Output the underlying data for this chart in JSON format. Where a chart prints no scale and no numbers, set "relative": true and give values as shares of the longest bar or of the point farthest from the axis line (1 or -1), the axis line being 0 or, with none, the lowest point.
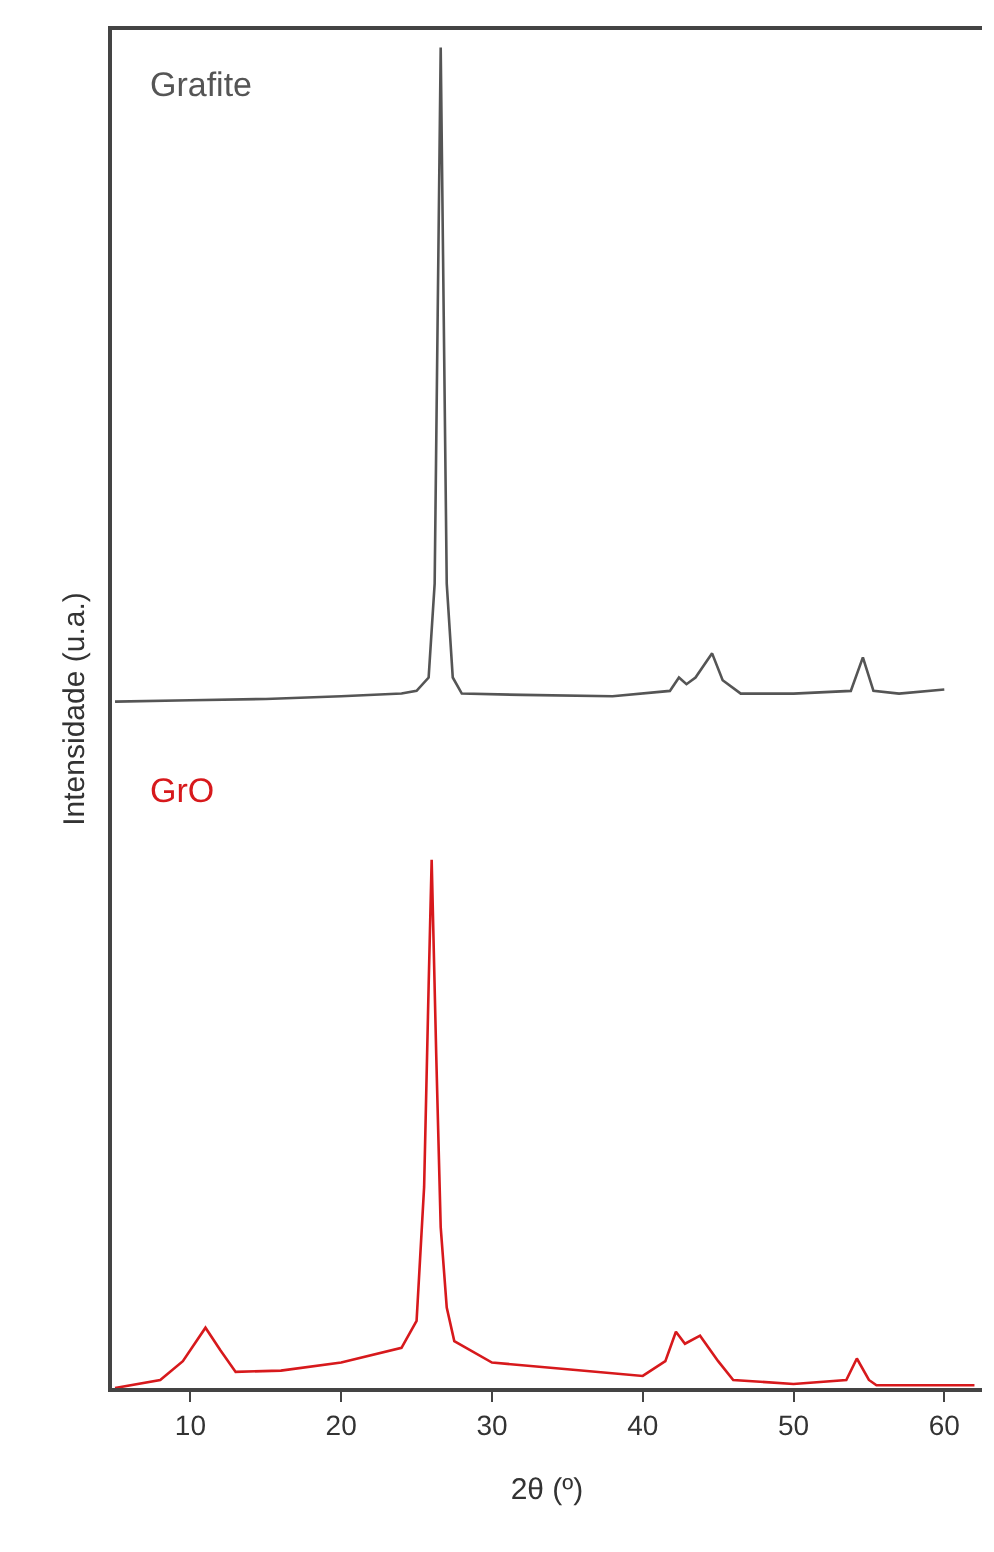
{
  "chart_data": {
    "type": "line",
    "relative": true,
    "xlabel": "2θ (º)",
    "ylabel": "Intensidade (u.a.)",
    "xlim": [
      4.8,
      62.5
    ],
    "xticks": [
      10,
      20,
      30,
      40,
      50,
      60
    ],
    "legend": false,
    "grid": false,
    "marker": "none",
    "line_style": "solid",
    "series": [
      {
        "name": "Grafite",
        "color": "#555555",
        "x": [
          5,
          10,
          15,
          20,
          24,
          25,
          25.8,
          26.2,
          26.4,
          26.6,
          26.8,
          27.0,
          27.4,
          28,
          32,
          38,
          41.8,
          42.4,
          42.9,
          43.5,
          44.6,
          45.3,
          46.5,
          50,
          53.8,
          54.6,
          55.3,
          57,
          60
        ],
        "values": [
          0.512,
          0.513,
          0.514,
          0.516,
          0.518,
          0.52,
          0.53,
          0.6,
          0.8,
          1.0,
          0.8,
          0.6,
          0.53,
          0.518,
          0.517,
          0.516,
          0.52,
          0.53,
          0.525,
          0.53,
          0.548,
          0.528,
          0.518,
          0.518,
          0.52,
          0.545,
          0.52,
          0.518,
          0.521
        ]
      },
      {
        "name": "GrO",
        "color": "#d7191c",
        "x": [
          5,
          8,
          9.5,
          11,
          12,
          13,
          16,
          20,
          24,
          25,
          25.5,
          25.8,
          26.0,
          26.3,
          26.6,
          27.0,
          27.5,
          30,
          35,
          40,
          41.5,
          42.2,
          42.8,
          43.8,
          45,
          46,
          50,
          53.5,
          54.2,
          55,
          55.5,
          62
        ],
        "values": [
          0,
          0.006,
          0.02,
          0.045,
          0.028,
          0.012,
          0.013,
          0.019,
          0.03,
          0.05,
          0.15,
          0.3,
          0.394,
          0.25,
          0.12,
          0.06,
          0.035,
          0.019,
          0.014,
          0.009,
          0.02,
          0.042,
          0.033,
          0.039,
          0.02,
          0.006,
          0.003,
          0.006,
          0.022,
          0.006,
          0.002,
          0.002
        ]
      }
    ]
  }
}
